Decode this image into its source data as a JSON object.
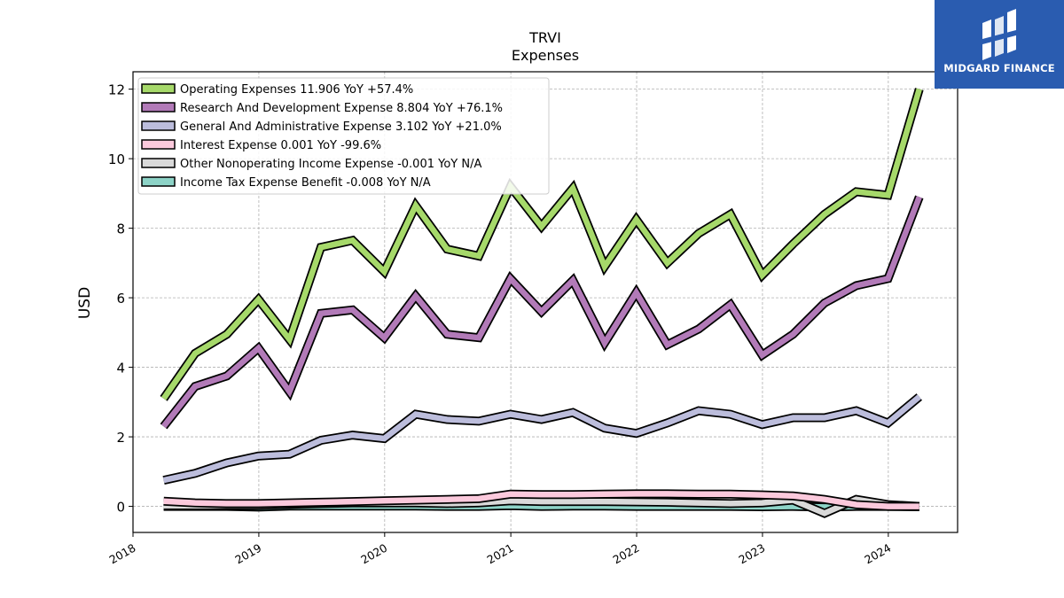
{
  "brand": {
    "name": "MIDGARD FINANCE",
    "bg_color": "#2a5cb0"
  },
  "chart_data": {
    "type": "line",
    "title": "TRVI",
    "subtitle": "Expenses",
    "ylabel": "USD",
    "xlabel": "",
    "ylim": [
      -0.75,
      12.5
    ],
    "xlim": [
      "2018-01-01",
      "2024-07-20"
    ],
    "y_ticks": [
      0,
      2,
      4,
      6,
      8,
      10,
      12
    ],
    "x_ticks": [
      "2018",
      "2019",
      "2020",
      "2021",
      "2022",
      "2023",
      "2024"
    ],
    "grid": true,
    "legend_position": "top-left",
    "x": [
      "2018-03-31",
      "2018-06-30",
      "2018-09-30",
      "2018-12-31",
      "2019-03-31",
      "2019-06-30",
      "2019-09-30",
      "2019-12-31",
      "2020-03-31",
      "2020-06-30",
      "2020-09-30",
      "2020-12-31",
      "2021-03-31",
      "2021-06-30",
      "2021-09-30",
      "2021-12-31",
      "2022-03-31",
      "2022-06-30",
      "2022-09-30",
      "2022-12-31",
      "2023-03-31",
      "2023-06-30",
      "2023-09-30",
      "2023-12-31",
      "2024-03-31"
    ],
    "series": [
      {
        "name": "Operating Expenses",
        "legend": "Operating Expenses  11.906 YoY +57.4%",
        "color": "#a6d96a",
        "values": [
          3.1,
          4.4,
          4.95,
          5.95,
          4.8,
          7.45,
          7.65,
          6.75,
          8.65,
          7.4,
          7.2,
          9.2,
          8.05,
          9.15,
          6.9,
          8.25,
          7.0,
          7.85,
          8.4,
          6.65,
          7.55,
          8.4,
          9.05,
          8.95,
          12.0
        ]
      },
      {
        "name": "Research And Development Expense",
        "legend": "Research And Development Expense  8.804 YoY +76.1%",
        "color": "#b27ab8",
        "values": [
          2.3,
          3.45,
          3.75,
          4.55,
          3.3,
          5.55,
          5.65,
          4.85,
          6.05,
          4.95,
          4.85,
          6.55,
          5.6,
          6.5,
          4.7,
          6.15,
          4.65,
          5.1,
          5.8,
          4.35,
          4.95,
          5.85,
          6.35,
          6.55,
          8.9
        ]
      },
      {
        "name": "General And Administrative Expense",
        "legend": "General And Administrative Expense  3.102 YoY +21.0%",
        "color": "#bcbddc",
        "values": [
          0.75,
          0.95,
          1.25,
          1.45,
          1.5,
          1.9,
          2.05,
          1.95,
          2.65,
          2.5,
          2.45,
          2.65,
          2.5,
          2.7,
          2.25,
          2.1,
          2.4,
          2.75,
          2.65,
          2.35,
          2.55,
          2.55,
          2.75,
          2.4,
          3.15
        ]
      },
      {
        "name": "Interest Expense",
        "legend": "Interest Expense  0.001 YoY -99.6%",
        "color": "#fbc9dc",
        "values": [
          0.15,
          0.1,
          0.08,
          0.08,
          0.1,
          0.12,
          0.14,
          0.16,
          0.18,
          0.2,
          0.22,
          0.35,
          0.34,
          0.34,
          0.35,
          0.36,
          0.36,
          0.35,
          0.35,
          0.33,
          0.3,
          0.2,
          0.05,
          0.0,
          0.0
        ]
      },
      {
        "name": "Other Nonoperating Income Expense",
        "legend": "Other Nonoperating Income Expense  -0.001 YoY N/A",
        "color": "#d9d9d9",
        "values": [
          0.02,
          0.02,
          0.03,
          0.03,
          0.06,
          0.08,
          0.1,
          0.1,
          0.1,
          0.08,
          0.1,
          0.16,
          0.14,
          0.14,
          0.14,
          0.13,
          0.12,
          0.1,
          0.08,
          0.1,
          0.18,
          -0.2,
          0.2,
          0.05,
          0.0
        ]
      },
      {
        "name": "Income Tax Expense Benefit",
        "legend": "Income Tax Expense Benefit  -0.008 YoY N/A",
        "color": "#8dd3c7",
        "values": [
          0.0,
          0.0,
          0.0,
          -0.02,
          0.01,
          0.01,
          0.01,
          0.01,
          0.01,
          0.0,
          0.0,
          0.02,
          0.0,
          0.01,
          0.01,
          0.0,
          0.0,
          0.0,
          0.0,
          -0.01,
          0.0,
          -0.02,
          0.0,
          0.0,
          -0.01
        ]
      }
    ]
  }
}
